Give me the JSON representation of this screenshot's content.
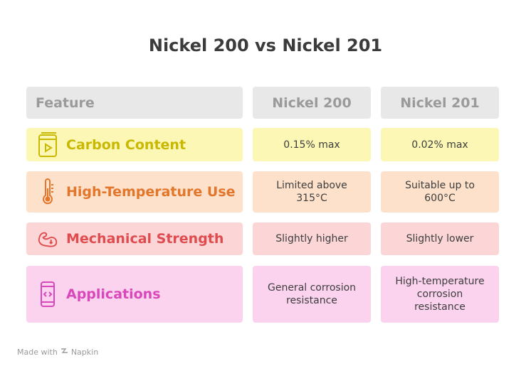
{
  "title": "Nickel 200 vs Nickel 201",
  "headers": {
    "feature": "Feature",
    "col1": "Nickel 200",
    "col2": "Nickel 201"
  },
  "rows": [
    {
      "feature": "Carbon Content",
      "icon": "video-file-icon",
      "accent": "#c9b800",
      "bg": "#fcf7b4",
      "nickel200": "0.15% max",
      "nickel201": "0.02% max"
    },
    {
      "feature": "High-Temperature Use",
      "icon": "thermometer-icon",
      "accent": "#e2772c",
      "bg": "#fde1cb",
      "nickel200": "Limited above 315°C",
      "nickel201": "Suitable up to 600°C"
    },
    {
      "feature": "Mechanical Strength",
      "icon": "flexed-arm-icon",
      "accent": "#df4b4f",
      "bg": "#fcd6d6",
      "nickel200": "Slightly higher",
      "nickel201": "Slightly lower"
    },
    {
      "feature": "Applications",
      "icon": "mobile-code-icon",
      "accent": "#d948ba",
      "bg": "#fbd3ee",
      "nickel200": "General corrosion resistance",
      "nickel201": "High-temperature corrosion resistance"
    }
  ],
  "footer": {
    "made_with": "Made with",
    "brand": "Napkin"
  }
}
